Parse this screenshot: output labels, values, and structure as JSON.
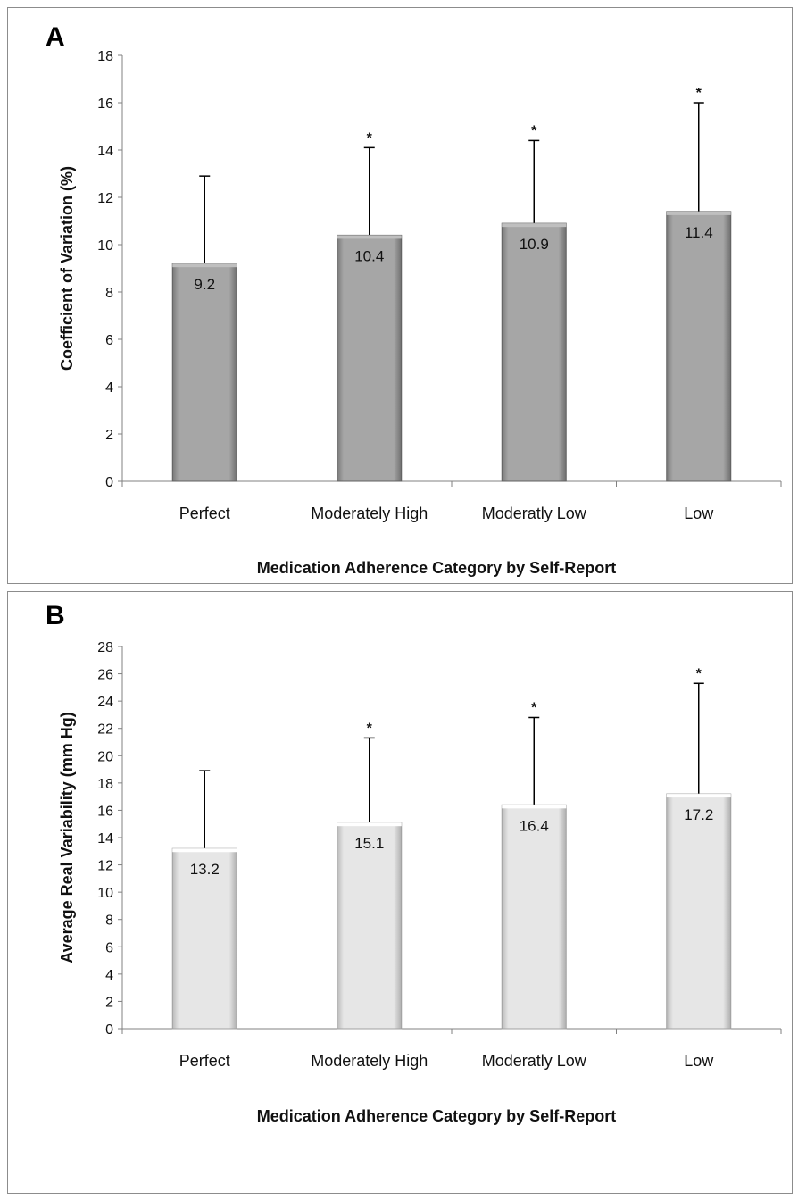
{
  "chart_data": [
    {
      "panel": "A",
      "type": "bar",
      "categories": [
        "Perfect",
        "Moderately High",
        "Moderatly Low",
        "Low"
      ],
      "values": [
        9.2,
        10.4,
        10.9,
        11.4
      ],
      "value_labels": [
        "9.2",
        "10.4",
        "10.9",
        "11.4"
      ],
      "error_upper": [
        12.9,
        14.1,
        14.4,
        16.0
      ],
      "significance": [
        "",
        "*",
        "*",
        "*"
      ],
      "ylabel": "Coefficient of Variation (%)",
      "xlabel": "Medication Adherence Category by Self-Report",
      "ylim": [
        0,
        18
      ],
      "yticks": [
        0,
        2,
        4,
        6,
        8,
        10,
        12,
        14,
        16,
        18
      ],
      "bar_color": "#a6a6a6",
      "grid": false
    },
    {
      "panel": "B",
      "type": "bar",
      "categories": [
        "Perfect",
        "Moderately High",
        "Moderatly Low",
        "Low"
      ],
      "values": [
        13.2,
        15.1,
        16.4,
        17.2
      ],
      "value_labels": [
        "13.2",
        "15.1",
        "16.4",
        "17.2"
      ],
      "error_upper": [
        18.9,
        21.3,
        22.8,
        25.3
      ],
      "significance": [
        "",
        "*",
        "*",
        "*"
      ],
      "ylabel": "Average Real Variability (mm Hg)",
      "xlabel": "Medication Adherence Category by Self-Report",
      "ylim": [
        0,
        28
      ],
      "yticks": [
        0,
        2,
        4,
        6,
        8,
        10,
        12,
        14,
        16,
        18,
        20,
        22,
        24,
        26,
        28
      ],
      "bar_color": "#e6e6e6",
      "grid": false
    }
  ]
}
